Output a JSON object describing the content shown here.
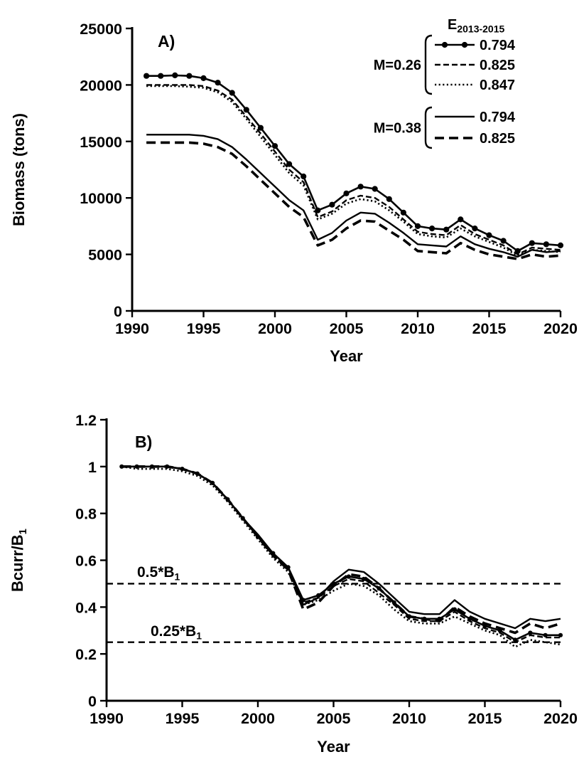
{
  "figure": {
    "background": "#ffffff",
    "ink_color": "#000000"
  },
  "chart_data": [
    {
      "id": "panel-a",
      "type": "line",
      "panel_label": "A)",
      "xlabel": "Year",
      "ylabel": "Biomass (tons)",
      "ylabel_sub": "",
      "xlim": [
        1990,
        2020
      ],
      "ylim": [
        0,
        25000
      ],
      "xticks": [
        1990,
        1995,
        2000,
        2005,
        2010,
        2015,
        2020
      ],
      "yticks": [
        0,
        5000,
        10000,
        15000,
        20000,
        25000
      ],
      "grid": false,
      "x": [
        1991,
        1992,
        1993,
        1994,
        1995,
        1996,
        1997,
        1998,
        1999,
        2000,
        2001,
        2002,
        2003,
        2004,
        2005,
        2006,
        2007,
        2008,
        2009,
        2010,
        2011,
        2012,
        2013,
        2014,
        2015,
        2016,
        2017,
        2018,
        2019,
        2020
      ],
      "series": [
        {
          "name": "M=0.26 E=0.794",
          "label": "0.794",
          "style": "solid-markers",
          "values": [
            20800,
            20800,
            20850,
            20800,
            20600,
            20200,
            19300,
            17800,
            16200,
            14600,
            13000,
            11900,
            8900,
            9400,
            10400,
            11000,
            10800,
            9900,
            8700,
            7500,
            7300,
            7200,
            8100,
            7300,
            6700,
            6200,
            5300,
            6000,
            5900,
            5800
          ]
        },
        {
          "name": "M=0.26 E=0.825",
          "label": "0.825",
          "style": "dashed",
          "values": [
            20000,
            20000,
            20000,
            20000,
            19900,
            19500,
            18700,
            17200,
            15700,
            14100,
            12500,
            11400,
            8300,
            8800,
            9800,
            10200,
            10000,
            9200,
            8100,
            7000,
            6800,
            6700,
            7600,
            6800,
            6300,
            5800,
            5000,
            5600,
            5500,
            5400
          ]
        },
        {
          "name": "M=0.26 E=0.847",
          "label": "0.847",
          "style": "dotted",
          "values": [
            19900,
            19900,
            19900,
            19850,
            19750,
            19350,
            18500,
            17000,
            15400,
            13800,
            12200,
            11100,
            8100,
            8600,
            9500,
            9900,
            9700,
            8900,
            7900,
            6800,
            6600,
            6500,
            7300,
            6600,
            6100,
            5600,
            4900,
            5400,
            5300,
            5200
          ]
        },
        {
          "name": "M=0.38 E=0.794",
          "label": "0.794",
          "style": "solid",
          "values": [
            15600,
            15600,
            15600,
            15600,
            15500,
            15200,
            14500,
            13400,
            12200,
            11000,
            9800,
            8900,
            6300,
            6900,
            8000,
            8700,
            8600,
            7800,
            6900,
            5900,
            5800,
            5700,
            6600,
            5900,
            5500,
            5200,
            4800,
            5400,
            5200,
            5300
          ]
        },
        {
          "name": "M=0.38 E=0.825",
          "label": "0.825",
          "style": "long-dash-thick",
          "values": [
            14900,
            14900,
            14900,
            14900,
            14800,
            14500,
            13900,
            12800,
            11600,
            10400,
            9200,
            8300,
            5800,
            6300,
            7300,
            8000,
            7900,
            7100,
            6300,
            5300,
            5200,
            5100,
            6000,
            5400,
            5000,
            4800,
            4600,
            5000,
            4800,
            4900
          ]
        }
      ],
      "legend": {
        "position": "top-right",
        "header_main": "E",
        "header_sub": "2013-2015",
        "groups": [
          {
            "label": "M=0.26",
            "entries": [
              "0.794",
              "0.825",
              "0.847"
            ]
          },
          {
            "label": "M=0.38",
            "entries": [
              "0.794",
              "0.825"
            ]
          }
        ]
      }
    },
    {
      "id": "panel-b",
      "type": "line",
      "panel_label": "B)",
      "xlabel": "Year",
      "ylabel": "Bcurr/B",
      "ylabel_sub": "1",
      "xlim": [
        1990,
        2020
      ],
      "ylim": [
        0,
        1.2
      ],
      "xticks": [
        1990,
        1995,
        2000,
        2005,
        2010,
        2015,
        2020
      ],
      "yticks": [
        0,
        0.2,
        0.4,
        0.6,
        0.8,
        1,
        1.2
      ],
      "grid": false,
      "x": [
        1991,
        1992,
        1993,
        1994,
        1995,
        1996,
        1997,
        1998,
        1999,
        2000,
        2001,
        2002,
        2003,
        2004,
        2005,
        2006,
        2007,
        2008,
        2009,
        2010,
        2011,
        2012,
        2013,
        2014,
        2015,
        2016,
        2017,
        2018,
        2019,
        2020
      ],
      "series": [
        {
          "name": "M=0.26 E=0.794",
          "label": "0.794",
          "style": "solid-markers",
          "values": [
            1,
            1,
            1,
            1,
            0.99,
            0.97,
            0.93,
            0.86,
            0.78,
            0.7,
            0.63,
            0.57,
            0.43,
            0.45,
            0.5,
            0.53,
            0.52,
            0.48,
            0.42,
            0.36,
            0.35,
            0.35,
            0.39,
            0.35,
            0.32,
            0.3,
            0.26,
            0.29,
            0.28,
            0.28
          ]
        },
        {
          "name": "M=0.26 E=0.825",
          "label": "0.825",
          "style": "dashed",
          "values": [
            1,
            1,
            1,
            1,
            0.99,
            0.97,
            0.93,
            0.86,
            0.78,
            0.7,
            0.62,
            0.56,
            0.42,
            0.44,
            0.49,
            0.52,
            0.51,
            0.46,
            0.41,
            0.35,
            0.34,
            0.34,
            0.38,
            0.34,
            0.31,
            0.29,
            0.25,
            0.28,
            0.27,
            0.27
          ]
        },
        {
          "name": "M=0.26 E=0.847",
          "label": "0.847",
          "style": "dotted",
          "values": [
            1,
            0.99,
            0.99,
            0.99,
            0.98,
            0.96,
            0.92,
            0.85,
            0.77,
            0.69,
            0.61,
            0.55,
            0.41,
            0.43,
            0.47,
            0.5,
            0.49,
            0.45,
            0.39,
            0.34,
            0.33,
            0.33,
            0.36,
            0.33,
            0.3,
            0.28,
            0.23,
            0.26,
            0.25,
            0.24
          ]
        },
        {
          "name": "M=0.38 E=0.794",
          "label": "0.794",
          "style": "solid",
          "values": [
            1,
            1,
            1,
            1,
            0.99,
            0.97,
            0.93,
            0.86,
            0.78,
            0.71,
            0.63,
            0.57,
            0.41,
            0.44,
            0.51,
            0.56,
            0.55,
            0.5,
            0.44,
            0.38,
            0.37,
            0.37,
            0.43,
            0.38,
            0.35,
            0.33,
            0.31,
            0.35,
            0.34,
            0.35
          ]
        },
        {
          "name": "M=0.38 E=0.825",
          "label": "0.825",
          "style": "long-dash-thick",
          "values": [
            1,
            1,
            1,
            1,
            0.99,
            0.97,
            0.93,
            0.86,
            0.78,
            0.7,
            0.62,
            0.56,
            0.39,
            0.42,
            0.49,
            0.54,
            0.53,
            0.48,
            0.42,
            0.36,
            0.35,
            0.34,
            0.4,
            0.36,
            0.33,
            0.31,
            0.29,
            0.33,
            0.31,
            0.33
          ]
        }
      ],
      "ref_lines": [
        {
          "value": 0.5,
          "label_main": "0.5*B",
          "label_sub": "1"
        },
        {
          "value": 0.25,
          "label_main": "0.25*B",
          "label_sub": "1"
        }
      ]
    }
  ]
}
